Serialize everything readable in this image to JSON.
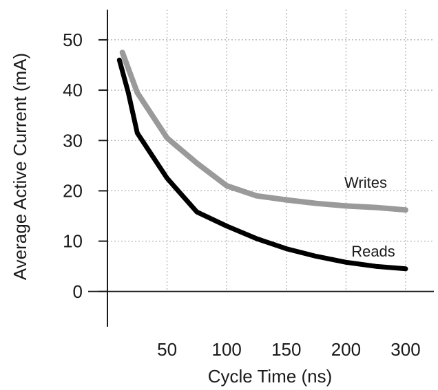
{
  "chart_data": {
    "type": "line",
    "xlabel": "Cycle Time (ns)",
    "ylabel": "Average Active Current (mA)",
    "x_tick_labels": [
      "50",
      "100",
      "150",
      "200",
      "300"
    ],
    "y_tick_labels": [
      "0",
      "10",
      "20",
      "30",
      "40",
      "50"
    ],
    "y_ticks": [
      0,
      10,
      20,
      30,
      40,
      50
    ],
    "ylim": [
      -7,
      56
    ],
    "grid": true,
    "series": [
      {
        "name": "Writes",
        "color": "#9a9a9a",
        "x_pos": [
          0.25,
          0.5,
          1.0,
          1.5,
          2.0,
          2.5,
          3.0,
          3.5,
          4.0,
          4.5,
          5.0
        ],
        "values": [
          47.5,
          39.5,
          30.5,
          25.5,
          21,
          19,
          18.2,
          17.5,
          17,
          16.7,
          16.2
        ]
      },
      {
        "name": "Reads",
        "color": "#000000",
        "x_pos": [
          0.2,
          0.35,
          0.5,
          1.0,
          1.5,
          2.0,
          2.5,
          3.0,
          3.5,
          4.0,
          4.5,
          5.0
        ],
        "values": [
          46,
          39.5,
          31.5,
          22.5,
          15.8,
          13,
          10.5,
          8.5,
          7,
          5.8,
          5,
          4.5
        ]
      }
    ]
  }
}
